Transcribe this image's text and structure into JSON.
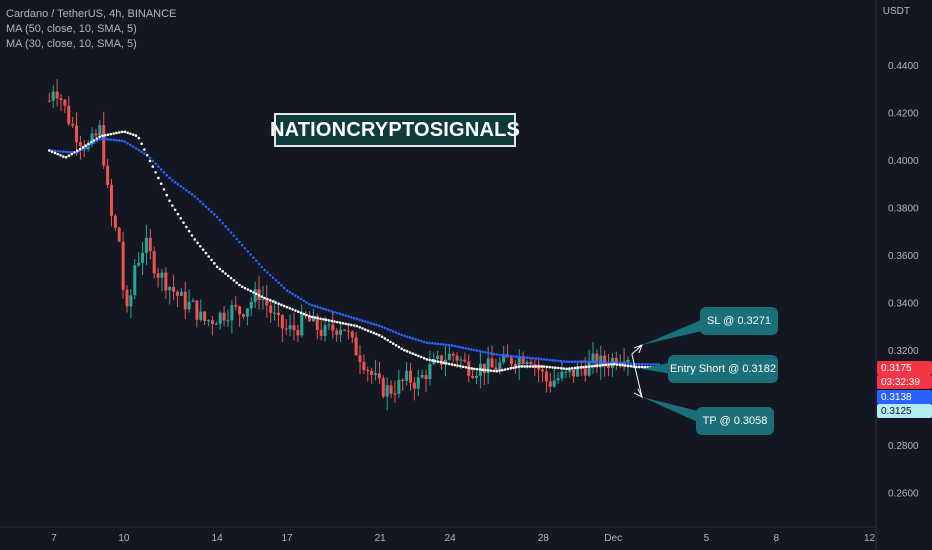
{
  "legend": {
    "symbol": "Cardano / TetherUS, 4h, BINANCE",
    "ma1": "MA (50, close, 10, SMA, 5)",
    "ma2": "MA (30, close, 10, SMA, 5)"
  },
  "axis_unit": "USDT",
  "watermark": "NATIONCRYPTOSIGNALS",
  "callouts": {
    "sl": "SL @ 0.3271",
    "entry": "Entry Short @ 0.3182",
    "tp": "TP @ 0.3058"
  },
  "price_tags": {
    "last_price": "0.3175",
    "countdown": "03:32:39",
    "ma_value": "0.3138",
    "ma2_value": "0.3125"
  },
  "colors": {
    "background": "#131722",
    "up_candle": "#26a69a",
    "down_candle": "#ef5350",
    "ma50": "#2962ff",
    "ma30": "#ffffff",
    "callout": "#1b6f78",
    "watermark_bg": "#0f3b3a"
  },
  "chart_data": {
    "type": "candlestick",
    "title": "Cardano / TetherUS, 4h, BINANCE",
    "ylabel": "USDT",
    "ylim": [
      0.25,
      0.45
    ],
    "y_ticks": [
      "0.4400",
      "0.4200",
      "0.4000",
      "0.3800",
      "0.3600",
      "0.3400",
      "0.3200",
      "0.2800",
      "0.2600"
    ],
    "x_ticks": [
      "7",
      "10",
      "14",
      "17",
      "21",
      "24",
      "28",
      "Dec",
      "5",
      "8",
      "12"
    ],
    "grid": false,
    "levels": {
      "stop_loss": 0.3271,
      "entry_short": 0.3182,
      "take_profit": 0.3058
    },
    "close_path": [
      [
        6.8,
        0.425
      ],
      [
        7.0,
        0.432
      ],
      [
        7.3,
        0.426
      ],
      [
        7.6,
        0.418
      ],
      [
        7.9,
        0.412
      ],
      [
        8.2,
        0.408
      ],
      [
        8.5,
        0.405
      ],
      [
        8.8,
        0.41
      ],
      [
        9.0,
        0.413
      ],
      [
        9.2,
        0.395
      ],
      [
        9.4,
        0.378
      ],
      [
        9.6,
        0.371
      ],
      [
        9.8,
        0.366
      ],
      [
        10.0,
        0.342
      ],
      [
        10.2,
        0.331
      ],
      [
        10.4,
        0.355
      ],
      [
        10.6,
        0.358
      ],
      [
        10.9,
        0.365
      ],
      [
        11.2,
        0.358
      ],
      [
        11.5,
        0.352
      ],
      [
        11.8,
        0.349
      ],
      [
        12.2,
        0.344
      ],
      [
        12.6,
        0.34
      ],
      [
        13.0,
        0.338
      ],
      [
        13.4,
        0.332
      ],
      [
        13.8,
        0.333
      ],
      [
        14.2,
        0.335
      ],
      [
        14.6,
        0.337
      ],
      [
        15.0,
        0.336
      ],
      [
        15.4,
        0.34
      ],
      [
        15.8,
        0.344
      ],
      [
        16.2,
        0.338
      ],
      [
        16.6,
        0.331
      ],
      [
        17.0,
        0.328
      ],
      [
        17.4,
        0.329
      ],
      [
        17.8,
        0.333
      ],
      [
        18.2,
        0.33
      ],
      [
        18.6,
        0.327
      ],
      [
        19.0,
        0.329
      ],
      [
        19.4,
        0.331
      ],
      [
        19.8,
        0.322
      ],
      [
        20.2,
        0.317
      ],
      [
        20.6,
        0.31
      ],
      [
        21.0,
        0.304
      ],
      [
        21.4,
        0.303
      ],
      [
        21.8,
        0.305
      ],
      [
        22.2,
        0.308
      ],
      [
        22.6,
        0.306
      ],
      [
        23.0,
        0.311
      ],
      [
        23.4,
        0.314
      ],
      [
        23.8,
        0.317
      ],
      [
        24.2,
        0.318
      ],
      [
        24.6,
        0.314
      ],
      [
        25.0,
        0.312
      ],
      [
        25.4,
        0.313
      ],
      [
        25.8,
        0.312
      ],
      [
        26.2,
        0.314
      ],
      [
        26.6,
        0.316
      ],
      [
        27.0,
        0.317
      ],
      [
        27.4,
        0.318
      ],
      [
        27.8,
        0.312
      ],
      [
        28.2,
        0.306
      ],
      [
        28.6,
        0.308
      ],
      [
        29.0,
        0.309
      ],
      [
        29.4,
        0.311
      ],
      [
        29.8,
        0.313
      ],
      [
        30.2,
        0.315
      ],
      [
        30.6,
        0.314
      ],
      [
        31.0,
        0.316
      ],
      [
        31.4,
        0.319
      ],
      [
        31.7,
        0.3175
      ]
    ],
    "ma50_path": [
      [
        6.8,
        0.404
      ],
      [
        8.0,
        0.403
      ],
      [
        9.0,
        0.409
      ],
      [
        10.0,
        0.408
      ],
      [
        11.0,
        0.402
      ],
      [
        12.0,
        0.392
      ],
      [
        13.0,
        0.385
      ],
      [
        14.0,
        0.376
      ],
      [
        15.0,
        0.365
      ],
      [
        16.0,
        0.354
      ],
      [
        17.0,
        0.345
      ],
      [
        18.0,
        0.339
      ],
      [
        19.0,
        0.336
      ],
      [
        20.0,
        0.333
      ],
      [
        21.0,
        0.33
      ],
      [
        22.0,
        0.326
      ],
      [
        23.0,
        0.323
      ],
      [
        24.0,
        0.322
      ],
      [
        25.0,
        0.32
      ],
      [
        26.0,
        0.318
      ],
      [
        27.0,
        0.317
      ],
      [
        28.0,
        0.316
      ],
      [
        29.0,
        0.315
      ],
      [
        30.0,
        0.315
      ],
      [
        31.0,
        0.3145
      ],
      [
        32.0,
        0.314
      ],
      [
        33.0,
        0.3138
      ]
    ],
    "ma30_path": [
      [
        6.8,
        0.404
      ],
      [
        7.5,
        0.401
      ],
      [
        8.2,
        0.405
      ],
      [
        9.0,
        0.41
      ],
      [
        10.0,
        0.412
      ],
      [
        10.6,
        0.41
      ],
      [
        11.2,
        0.398
      ],
      [
        12.0,
        0.382
      ],
      [
        13.0,
        0.367
      ],
      [
        14.0,
        0.355
      ],
      [
        15.0,
        0.347
      ],
      [
        16.0,
        0.342
      ],
      [
        17.0,
        0.338
      ],
      [
        18.0,
        0.334
      ],
      [
        19.0,
        0.332
      ],
      [
        20.0,
        0.33
      ],
      [
        21.0,
        0.326
      ],
      [
        22.0,
        0.32
      ],
      [
        23.0,
        0.316
      ],
      [
        24.0,
        0.314
      ],
      [
        25.0,
        0.312
      ],
      [
        26.0,
        0.311
      ],
      [
        27.0,
        0.313
      ],
      [
        28.0,
        0.313
      ],
      [
        29.0,
        0.312
      ],
      [
        30.0,
        0.313
      ],
      [
        31.0,
        0.314
      ],
      [
        32.0,
        0.3128
      ],
      [
        33.0,
        0.3125
      ]
    ]
  }
}
